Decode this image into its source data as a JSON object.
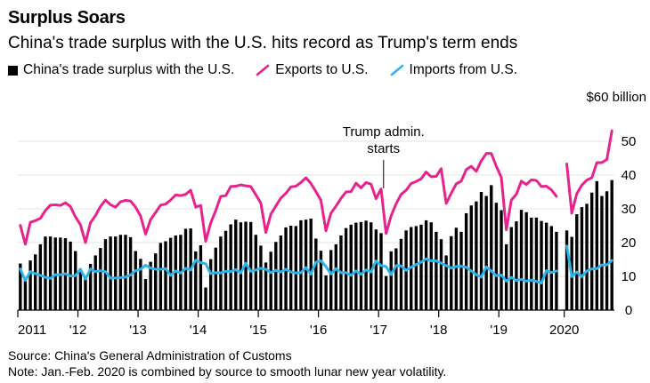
{
  "chart_data": {
    "type": "bar",
    "title": "Surplus Soars",
    "subtitle": "China's trade surplus with the U.S. hits record as Trump's term ends",
    "y_unit_label": "$60 billion",
    "ylim": [
      0,
      60
    ],
    "y_ticks": [
      "50",
      "40",
      "30",
      "20",
      "10",
      "0"
    ],
    "y_tick_values": [
      50,
      40,
      30,
      20,
      10,
      0
    ],
    "x_ticks": [
      "2011",
      "'12",
      "'13",
      "'14",
      "'15",
      "'16",
      "'17",
      "'18",
      "'19",
      "2020"
    ],
    "x_tick_month_index": [
      0,
      12,
      24,
      36,
      48,
      60,
      72,
      84,
      96,
      108
    ],
    "legend": [
      {
        "label": "China's trade surplus with the U.S.",
        "color": "#000000",
        "kind": "bar"
      },
      {
        "label": "Exports to U.S.",
        "color": "#e8228c",
        "kind": "line"
      },
      {
        "label": "Imports from U.S.",
        "color": "#2bb5ec",
        "kind": "line"
      }
    ],
    "annotation": {
      "lines": [
        "Trump admin.",
        "starts"
      ],
      "month_index": 73
    },
    "categories_note": "Monthly observations Jan 2011 - Dec 2020; Jan-Feb 2020 combined (shown as gap)",
    "gap_after_index": 107,
    "series": [
      {
        "name": "China's trade surplus with the U.S.",
        "values": [
          13.8,
          9.5,
          14.7,
          16.5,
          19.5,
          21.8,
          21.8,
          21.5,
          21.5,
          21.3,
          20.3,
          17.5,
          12.3,
          9.8,
          13.7,
          16.2,
          18.4,
          21.0,
          21.8,
          21.8,
          22.3,
          22.3,
          21.6,
          17.5,
          15.2,
          9.2,
          14.3,
          16.8,
          19.9,
          20.4,
          21.4,
          22.1,
          22.3,
          24.1,
          24.2,
          17.4,
          19.2,
          6.7,
          15.1,
          18.5,
          21.8,
          23.5,
          25.4,
          26.8,
          26.0,
          26.2,
          26.1,
          22.3,
          19.1,
          14.1,
          17.3,
          20.2,
          22.1,
          24.5,
          25.0,
          24.9,
          26.6,
          26.8,
          27.1,
          21.2,
          17.6,
          10.3,
          17.8,
          19.5,
          22.1,
          24.3,
          25.3,
          25.9,
          26.1,
          26.5,
          26.0,
          23.9,
          22.8,
          10.1,
          17.4,
          18.3,
          21.1,
          23.6,
          24.6,
          24.9,
          25.3,
          26.6,
          26.0,
          23.2,
          21.0,
          16.2,
          21.9,
          24.4,
          23.2,
          28.7,
          31.0,
          32.2,
          35.0,
          33.8,
          37.0,
          31.8,
          29.6,
          19.5,
          24.6,
          26.3,
          29.7,
          29.0,
          27.4,
          27.4,
          26.4,
          25.9,
          24.9,
          23.2,
          23.6,
          21.7,
          28.4,
          30.5,
          31.5,
          34.8,
          38.2,
          33.8,
          35.2,
          38.5
        ]
      },
      {
        "name": "Exports to U.S.",
        "values": [
          25.1,
          19.5,
          26.0,
          26.5,
          27.2,
          29.5,
          31.1,
          31.2,
          31.0,
          31.8,
          30.7,
          27.6,
          25.3,
          20.0,
          25.9,
          28.0,
          30.7,
          32.6,
          31.2,
          30.5,
          32.1,
          32.5,
          32.3,
          30.5,
          27.9,
          22.5,
          26.8,
          28.9,
          31.1,
          31.4,
          32.6,
          34.1,
          33.9,
          34.3,
          35.5,
          30.5,
          31.0,
          20.4,
          25.8,
          29.5,
          33.7,
          33.9,
          36.6,
          36.7,
          37.1,
          36.8,
          36.6,
          34.2,
          31.7,
          23.0,
          28.4,
          30.8,
          33.2,
          34.6,
          36.5,
          36.7,
          37.8,
          39.2,
          37.5,
          35.1,
          32.5,
          23.5,
          28.7,
          30.8,
          33.1,
          35.0,
          35.1,
          37.6,
          36.2,
          37.8,
          37.3,
          33.0,
          35.9,
          22.7,
          27.9,
          31.5,
          34.3,
          35.5,
          37.5,
          38.1,
          38.9,
          40.9,
          39.5,
          39.6,
          41.9,
          31.6,
          34.6,
          37.4,
          38.2,
          41.6,
          42.6,
          41.1,
          44.2,
          46.4,
          46.4,
          42.6,
          39.3,
          23.8,
          32.6,
          34.3,
          38.2,
          37.2,
          38.6,
          38.4,
          36.6,
          36.7,
          35.6,
          33.7,
          43.3,
          28.7,
          34.5,
          37.0,
          38.5,
          39.2,
          43.7,
          43.7,
          44.6,
          53.1
        ]
      },
      {
        "name": "Imports from U.S.",
        "values": [
          12.2,
          8.8,
          11.4,
          10.8,
          10.3,
          9.7,
          9.4,
          10.5,
          10.5,
          10.8,
          10.1,
          10.2,
          12.1,
          9.2,
          12.2,
          11.4,
          11.7,
          11.4,
          9.5,
          9.5,
          9.6,
          9.8,
          10.4,
          11.7,
          12.1,
          13.3,
          12.5,
          12.1,
          12.1,
          12.3,
          10.3,
          11.6,
          11.0,
          12.4,
          11.9,
          14.8,
          14.1,
          13.7,
          10.8,
          11.1,
          11.0,
          11.5,
          11.4,
          12.0,
          11.0,
          13.9,
          11.5,
          11.9,
          12.4,
          12.1,
          11.1,
          11.8,
          11.3,
          12.1,
          11.3,
          11.0,
          11.1,
          12.6,
          10.6,
          14.2,
          14.6,
          12.9,
          10.7,
          12.3,
          11.1,
          11.1,
          10.3,
          11.6,
          10.6,
          11.9,
          11.3,
          14.6,
          13.2,
          12.9,
          10.5,
          13.2,
          13.1,
          11.8,
          12.7,
          13.5,
          14.2,
          15.2,
          14.6,
          14.6,
          13.9,
          13.2,
          12.5,
          12.9,
          13.0,
          12.7,
          11.6,
          10.5,
          9.8,
          12.8,
          11.6,
          10.2,
          10.4,
          8.6,
          9.7,
          8.8,
          9.1,
          8.6,
          8.9,
          8.5,
          8.0,
          11.7,
          11.1,
          11.6,
          19.0,
          9.9,
          11.3,
          9.9,
          11.6,
          12.2,
          12.3,
          13.4,
          13.4,
          14.7
        ]
      }
    ]
  },
  "footer": {
    "source": "Source: China's General Administration of Customs",
    "note": "Note: Jan.-Feb. 2020 is combined by source to smooth lunar new year volatility."
  }
}
